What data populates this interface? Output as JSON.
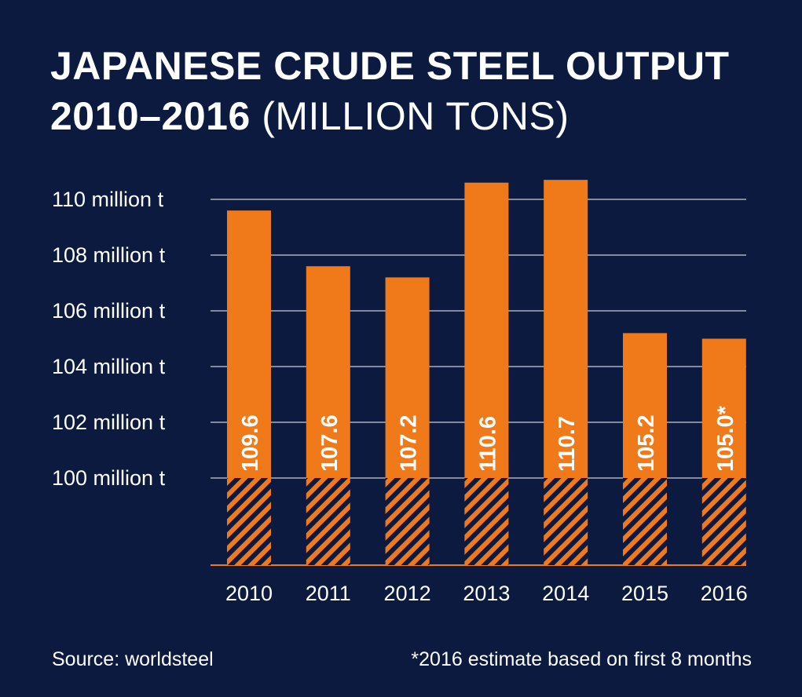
{
  "title": {
    "line1": "JAPANESE CRUDE STEEL OUTPUT",
    "line2_bold": "2010–2016",
    "line2_light": "(MILLION TONS)"
  },
  "colors": {
    "background": "#0c1a3f",
    "bar": "#f07a1a",
    "text": "#ffffff",
    "grid": "#c9cedb"
  },
  "chart_data": {
    "type": "bar",
    "categories": [
      "2010",
      "2011",
      "2012",
      "2013",
      "2014",
      "2015",
      "2016"
    ],
    "values": [
      109.6,
      107.6,
      107.2,
      110.6,
      110.7,
      105.2,
      105.0
    ],
    "value_labels": [
      "109.6",
      "107.6",
      "107.2",
      "110.6",
      "110.7",
      "105.2",
      "105.0*"
    ],
    "title": "JAPANESE CRUDE STEEL OUTPUT 2010–2016 (MILLION TONS)",
    "xlabel": "",
    "ylabel": "",
    "yticks": [
      100,
      102,
      104,
      106,
      108,
      110
    ],
    "ytick_labels": [
      "100 million t",
      "102 million t",
      "104 million t",
      "106 million t",
      "108 million t",
      "110 million t"
    ],
    "ylim": [
      100,
      111
    ],
    "axis_break_below": 100,
    "grid": true,
    "legend": "none"
  },
  "footer": {
    "source": "Source: worldsteel",
    "note": "*2016 estimate based on first 8 months"
  }
}
